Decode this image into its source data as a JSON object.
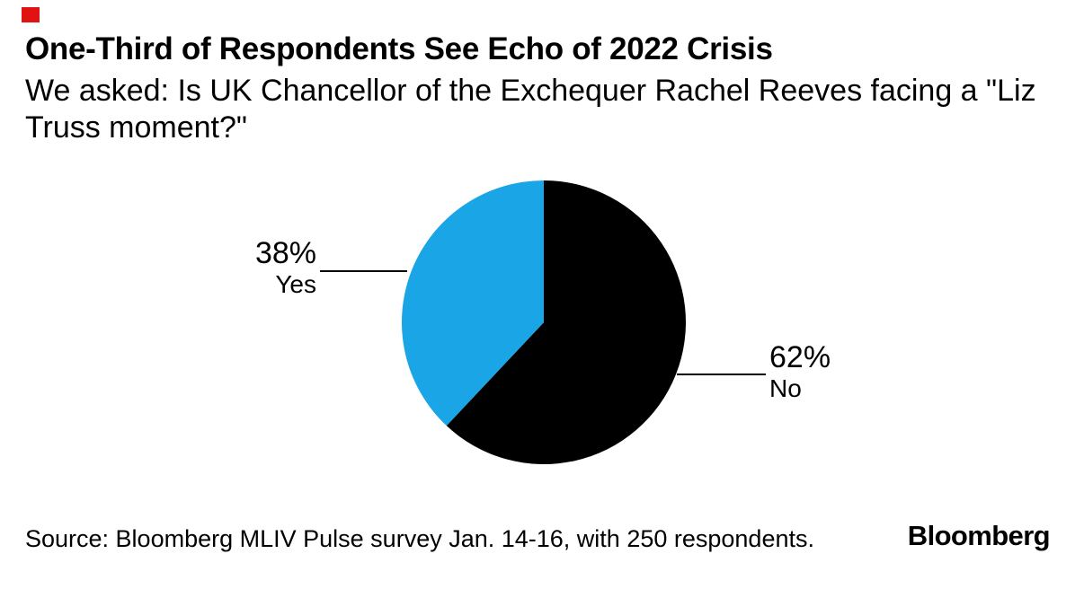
{
  "page": {
    "background": "#ffffff",
    "accent_color": "#e01212"
  },
  "header": {
    "title": "One-Third of Respondents See Echo of 2022 Crisis",
    "subtitle": "We asked: Is UK Chancellor of the Exchequer Rachel Reeves facing a \"Liz Truss moment?\"",
    "subtitle_lines": [
      "We asked: Is UK Chancellor of the Exchequer Rachel Reeves facing a \"Liz",
      "Truss moment?\""
    ]
  },
  "chart_data": {
    "type": "pie",
    "title": "One-Third of Respondents See Echo of 2022 Crisis",
    "question": "We asked: Is UK Chancellor of the Exchequer Rachel Reeves facing a \"Liz Truss moment?\"",
    "segments": [
      {
        "label": "No",
        "value": 62,
        "pct_label": "62%",
        "color": "#000000"
      },
      {
        "label": "Yes",
        "value": 38,
        "pct_label": "38%",
        "color": "#19a5e6"
      }
    ],
    "start_angle_deg": 0,
    "direction": "clockwise",
    "legend_position": "outside-callout-labels"
  },
  "footer": {
    "source": "Source: Bloomberg MLIV Pulse survey Jan. 14-16, with 250 respondents.",
    "brand": "Bloomberg"
  }
}
